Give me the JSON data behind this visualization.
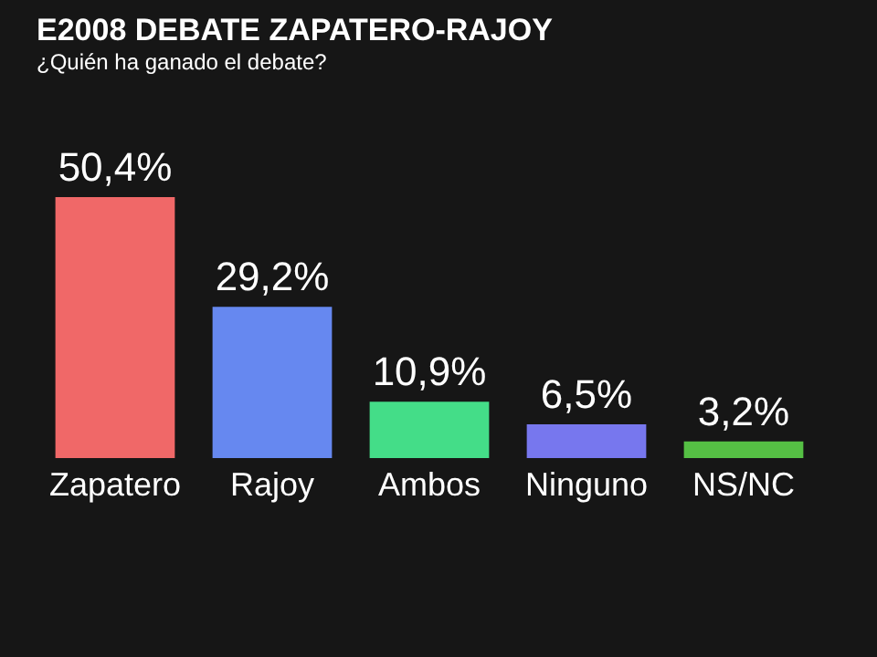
{
  "chart_data": {
    "type": "bar",
    "title": "E2008  DEBATE ZAPATERO-RAJOY",
    "subtitle": "¿Quién ha ganado el debate?",
    "categories": [
      "Zapatero",
      "Rajoy",
      "Ambos",
      "Ninguno",
      "NS/NC"
    ],
    "values": [
      50.4,
      29.2,
      10.9,
      6.5,
      3.2
    ],
    "colors": [
      "#f06868",
      "#6688f0",
      "#44dd88",
      "#7777ee",
      "#55c044"
    ],
    "value_labels": [
      "50,4%",
      "29,2%",
      "10,9%",
      "6,5%",
      "3,2%"
    ]
  }
}
